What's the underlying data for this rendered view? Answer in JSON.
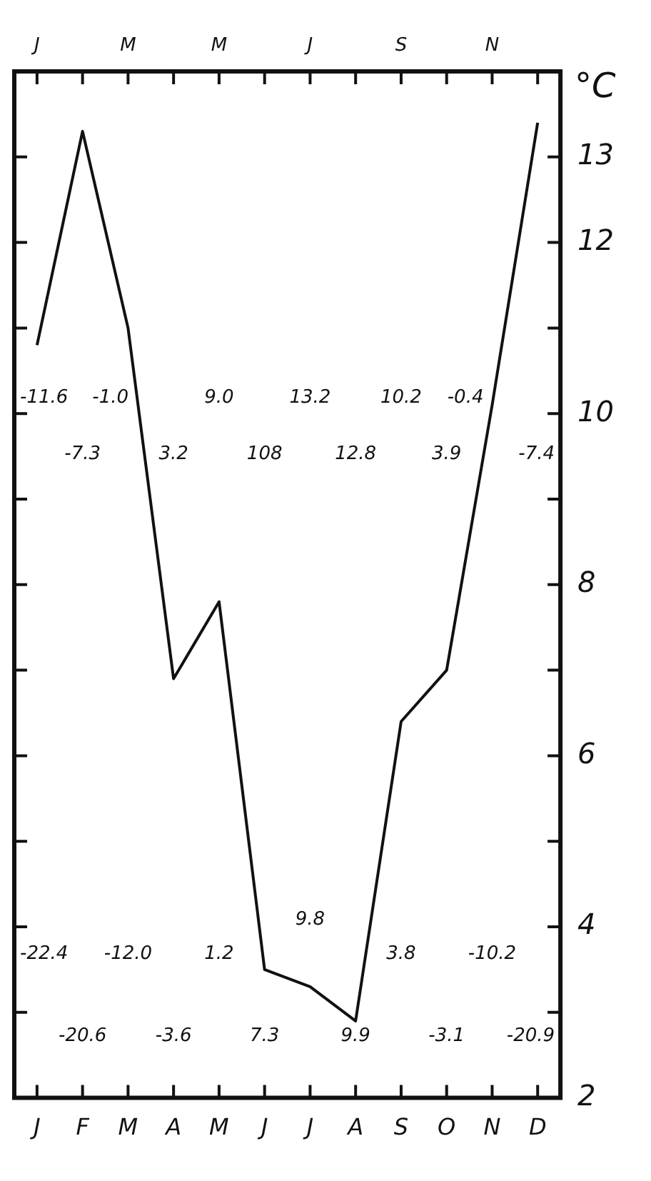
{
  "chart_data": {
    "type": "line",
    "ylabel": "°C",
    "categories": [
      "J",
      "F",
      "M",
      "A",
      "M",
      "J",
      "J",
      "A",
      "S",
      "O",
      "N",
      "D"
    ],
    "series": [
      {
        "color": "#111111",
        "values": [
          10.8,
          13.3,
          11.0,
          6.9,
          7.8,
          3.5,
          3.3,
          2.9,
          6.4,
          7.0,
          10.1,
          13.4
        ]
      }
    ],
    "ylim": [
      2,
      14
    ],
    "yticks": [
      2,
      {
        "value": 3,
        "label": null
      },
      4,
      {
        "value": 5,
        "label": null
      },
      6,
      {
        "value": 7,
        "label": null
      },
      8,
      {
        "value": 9,
        "label": null
      },
      10,
      {
        "value": 11,
        "label": null
      },
      12,
      13,
      {
        "value": 14,
        "label": null
      }
    ],
    "grid": false,
    "legend": false,
    "marker": "none",
    "line_style": "solid",
    "annotations": [
      "-11.6",
      "-7.3",
      "-1.0",
      "3.2",
      "9.0",
      "108",
      "13.2",
      "12.8",
      "10.2",
      "3.9",
      "-0.4",
      "-7.4",
      "-22.4",
      "-20.6",
      "-12.0",
      "-3.6",
      "1.2",
      "7.3",
      "9.8",
      "9.9",
      "3.8",
      "-3.1",
      "-10.2",
      "-20.9"
    ]
  }
}
